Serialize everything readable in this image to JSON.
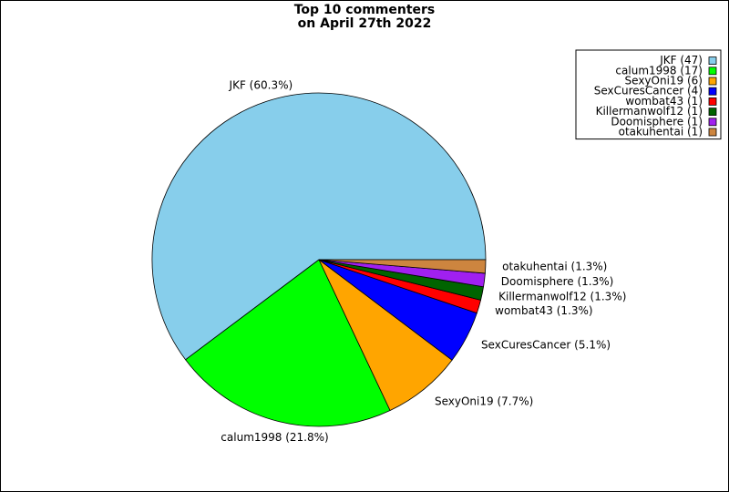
{
  "chart_data": {
    "type": "pie",
    "title": [
      "Top 10 commenters",
      "on April 27th 2022"
    ],
    "categories": [
      "JKF",
      "calum1998",
      "SexyOni19",
      "SexCuresCancer",
      "wombat43",
      "Killermanwolf12",
      "Doomisphere",
      "otakuhentai"
    ],
    "values": [
      60.3,
      21.8,
      7.7,
      5.1,
      1.3,
      1.3,
      1.3,
      1.3
    ],
    "value_labels": [
      "JKF (60.3%)",
      "calum1998 (21.8%)",
      "SexyOni19 (7.7%)",
      "SexCuresCancer (5.1%)",
      "wombat43 (1.3%)",
      "Killermanwolf12 (1.3%)",
      "Doomisphere (1.3%)",
      "otakuhentai (1.3%)"
    ],
    "legend_labels": [
      "JKF (47)",
      "calum1998 (17)",
      "SexyOni19 (6)",
      "SexCuresCancer (4)",
      "wombat43 (1)",
      "Killermanwolf12 (1)",
      "Doomisphere (1)",
      "otakuhentai (1)"
    ],
    "colors": [
      "#87ceeb",
      "#00ff00",
      "#ffa500",
      "#0000ff",
      "#ff0000",
      "#006400",
      "#a020f0",
      "#cd853f"
    ],
    "legend_position": "upper right"
  }
}
